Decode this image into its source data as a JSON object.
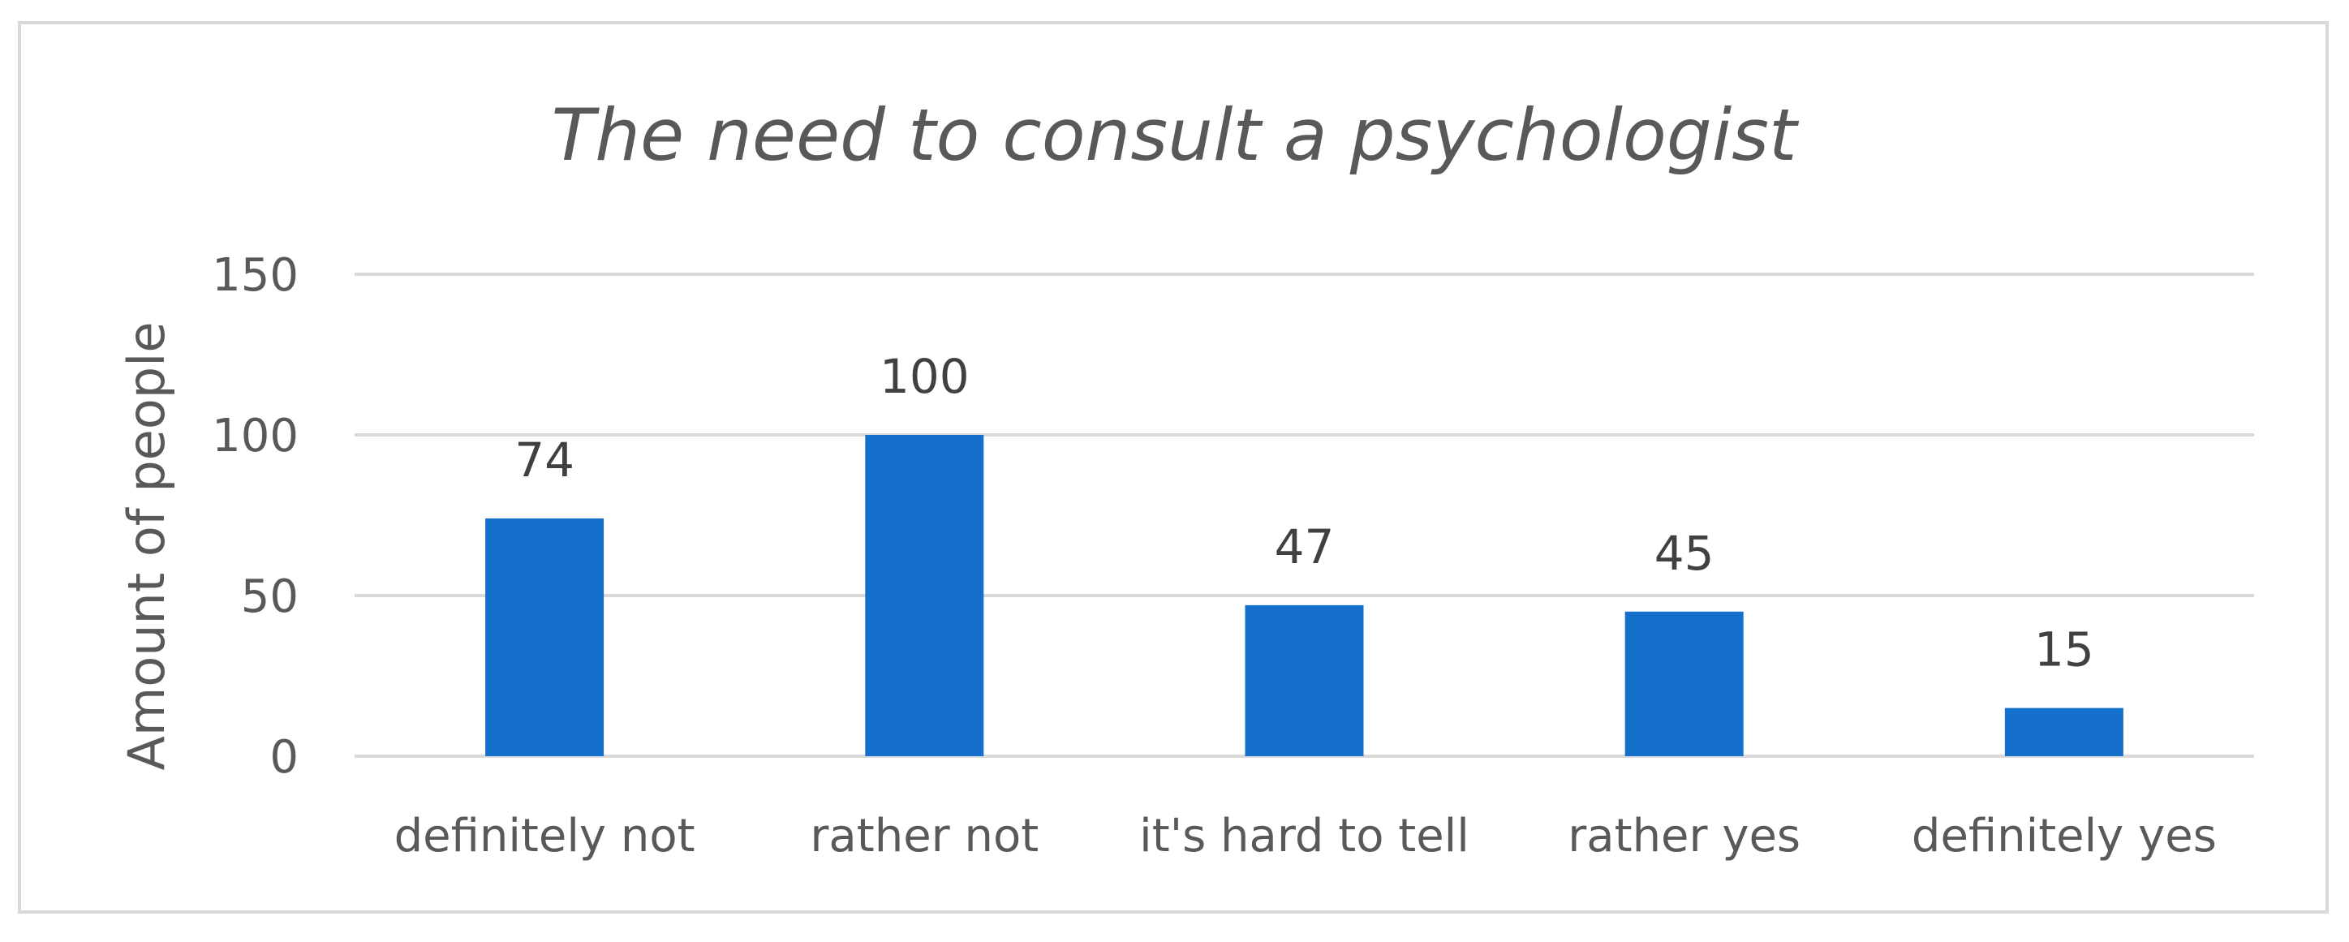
{
  "chart_data": {
    "type": "bar",
    "title": "The need to consult a psychologist",
    "xlabel": "",
    "ylabel": "Amount of people",
    "categories": [
      "definitely not",
      "rather not",
      "it's hard to tell",
      "rather yes",
      "definitely yes"
    ],
    "values": [
      74,
      100,
      47,
      45,
      15
    ],
    "ylim": [
      0,
      150
    ],
    "yticks": [
      0,
      50,
      100,
      150
    ],
    "grid": true,
    "legend": "none",
    "bar_color": "#1570CC",
    "grid_color": "#D9D9D9",
    "text_color": "#595959"
  }
}
